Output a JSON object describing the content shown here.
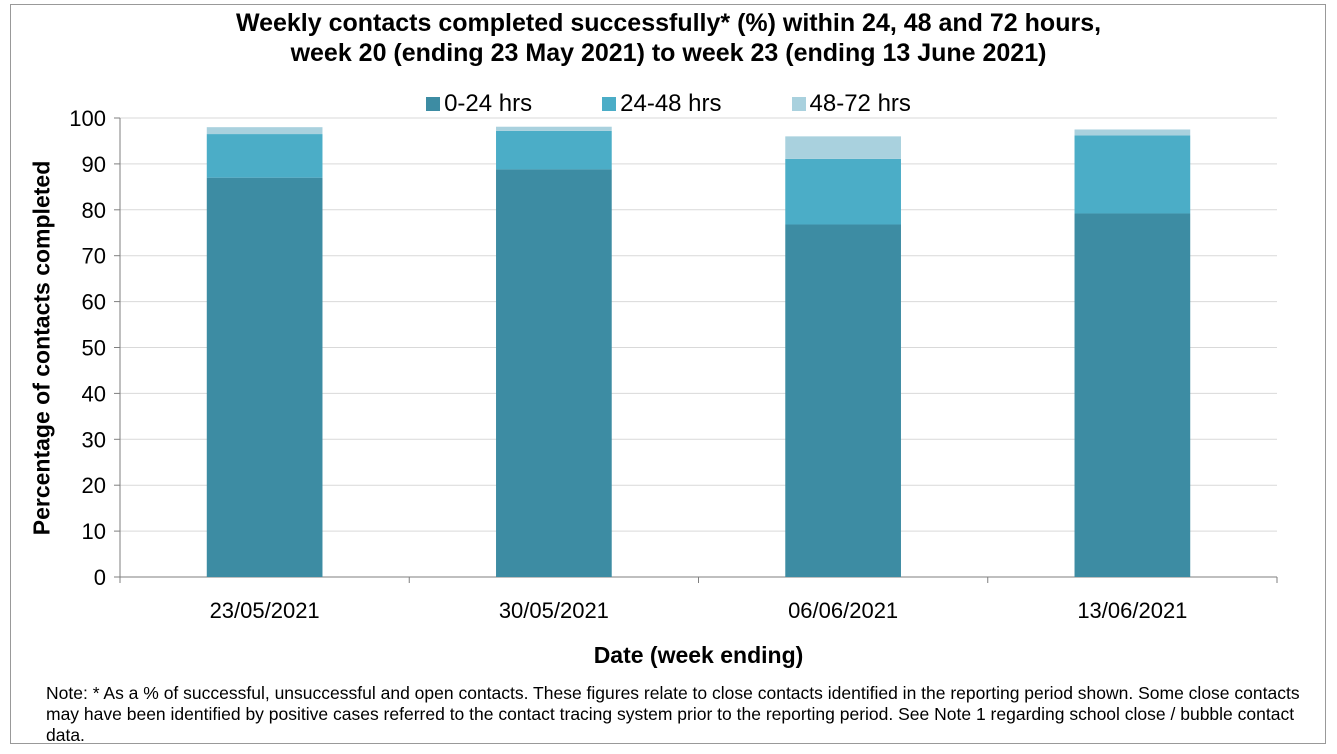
{
  "chart_data": {
    "type": "bar",
    "stacked": true,
    "title": [
      "Weekly contacts completed successfully* (%) within 24, 48 and 72 hours,",
      "week 20 (ending 23 May 2021) to week 23 (ending 13 June 2021)"
    ],
    "xlabel": "Date (week ending)",
    "ylabel": "Percentage of contacts completed",
    "categories": [
      "23/05/2021",
      "30/05/2021",
      "06/06/2021",
      "13/06/2021"
    ],
    "series": [
      {
        "name": "0-24 hrs",
        "color": "#3d8ca3",
        "values": [
          87.0,
          88.8,
          76.8,
          79.2
        ]
      },
      {
        "name": "24-48 hrs",
        "color": "#4badc7",
        "values": [
          9.5,
          8.4,
          14.3,
          17.0
        ]
      },
      {
        "name": "48-72 hrs",
        "color": "#a9d1de",
        "values": [
          1.5,
          0.9,
          4.9,
          1.3
        ]
      }
    ],
    "ylim": [
      0,
      100
    ],
    "yticks": [
      0,
      10,
      20,
      30,
      40,
      50,
      60,
      70,
      80,
      90,
      100
    ],
    "grid": true,
    "legend_position": "top"
  },
  "note": "Note: * As a % of successful, unsuccessful and open contacts. These figures relate to close contacts identified in the reporting period shown. Some close contacts may have been identified by positive cases referred to the contact tracing system prior to the reporting period. See Note 1 regarding school close / bubble contact data."
}
